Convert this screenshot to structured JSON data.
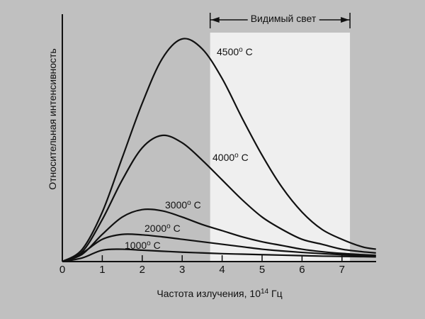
{
  "chart_data": {
    "type": "line",
    "title": "",
    "xlabel": "Частота излучения, 10",
    "xlabel_sup": "14",
    "xlabel_unit": " Гц",
    "ylabel": "Относительная интенсивность",
    "xlim": [
      0,
      7.85
    ],
    "ylim": [
      0,
      100
    ],
    "xticks": [
      "0",
      "1",
      "2",
      "3",
      "4",
      "5",
      "6",
      "7"
    ],
    "grid": false,
    "visible_band": {
      "label": "Видимый свет",
      "from": 3.7,
      "to": 7.2,
      "color": "#efefef"
    },
    "x": [
      0,
      0.5,
      1,
      1.5,
      2,
      2.5,
      3,
      3.5,
      4,
      4.5,
      5,
      5.5,
      6,
      6.5,
      7,
      7.5,
      7.85
    ],
    "series": [
      {
        "name": "4500",
        "sup": "o",
        "unit": "C",
        "values": [
          0,
          5,
          20,
          42,
          64,
          82,
          90,
          86,
          74,
          58,
          43,
          30,
          20,
          13,
          9,
          6,
          5
        ]
      },
      {
        "name": "4000",
        "sup": "o",
        "unit": "C",
        "values": [
          0,
          4,
          17,
          33,
          46,
          51,
          48,
          41,
          33,
          25,
          18,
          13,
          9,
          7,
          5,
          4,
          3.5
        ]
      },
      {
        "name": "3000",
        "sup": "o",
        "unit": "C",
        "values": [
          0,
          3,
          11,
          18,
          21,
          20.5,
          18,
          15,
          12.5,
          10,
          8,
          6.5,
          5,
          4,
          3.3,
          2.8,
          2.5
        ]
      },
      {
        "name": "2000",
        "sup": "o",
        "unit": "C",
        "values": [
          0,
          3.5,
          9,
          11,
          10.8,
          10,
          9,
          8,
          7,
          6,
          5,
          4.3,
          3.7,
          3.2,
          2.8,
          2.4,
          2.2
        ]
      },
      {
        "name": "1000",
        "sup": "o",
        "unit": "C",
        "values": [
          0,
          1.5,
          4.6,
          5,
          4.6,
          4.2,
          3.8,
          3.5,
          3.2,
          3,
          2.8,
          2.6,
          2.4,
          2.2,
          2.1,
          2,
          1.9
        ]
      }
    ]
  }
}
